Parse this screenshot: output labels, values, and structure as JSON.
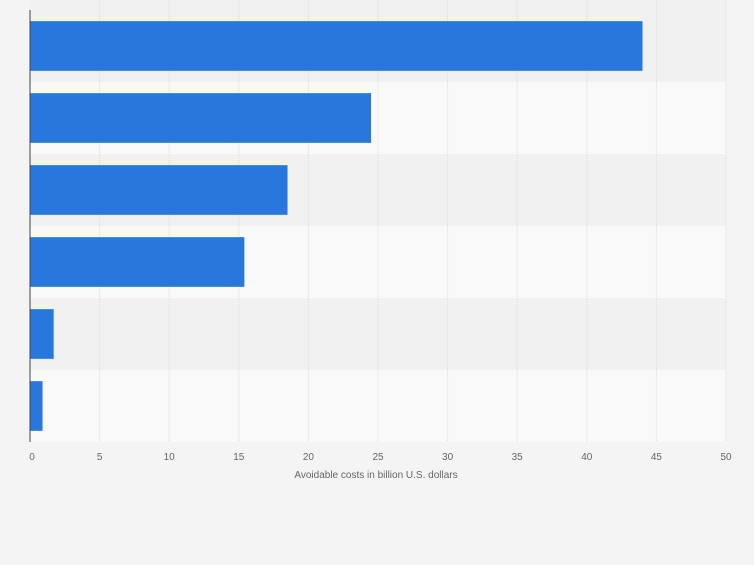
{
  "chart_data": {
    "type": "bar",
    "orientation": "horizontal",
    "categories": [
      "",
      "",
      "",
      "",
      "",
      ""
    ],
    "values": [
      44,
      24.5,
      18.5,
      15.4,
      1.7,
      0.9
    ],
    "title": "",
    "xlabel": "Avoidable costs in billion U.S. dollars",
    "ylabel": "",
    "xlim": [
      0,
      50
    ],
    "ticks": [
      "0",
      "5",
      "10",
      "15",
      "20",
      "25",
      "30",
      "35",
      "40",
      "45",
      "50"
    ],
    "grid": true,
    "legend": "none"
  },
  "colors": {
    "bar": "#2777dd",
    "band_dark": "#f1f1f1",
    "band_light": "#f9f9f9",
    "gridline": "#dcdcdc",
    "axis": "#444444",
    "tick_text": "#666666"
  }
}
